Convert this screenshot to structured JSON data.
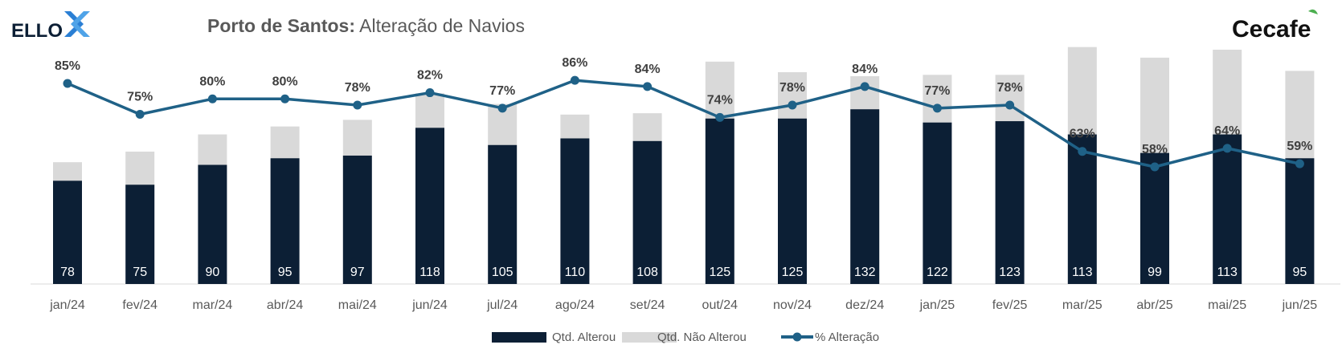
{
  "header": {
    "title_bold": "Porto de Santos:",
    "title_rest": " Alteração de Navios",
    "logo_left": "ELLO",
    "logo_right": "Cecafe"
  },
  "colors": {
    "altered": "#0c1f35",
    "not_altered": "#d9d9d9",
    "line": "#1f6187",
    "text_axis": "#595959",
    "pct_label": "#404040"
  },
  "chart_data": {
    "type": "bar",
    "stacked": true,
    "categories": [
      "jan/24",
      "fev/24",
      "mar/24",
      "abr/24",
      "mai/24",
      "jun/24",
      "jul/24",
      "ago/24",
      "set/24",
      "out/24",
      "nov/24",
      "dez/24",
      "jan/25",
      "fev/25",
      "mar/25",
      "abr/25",
      "mai/25",
      "jun/25"
    ],
    "series": [
      {
        "name": "Qtd. Alterou",
        "values": [
          78,
          75,
          90,
          95,
          97,
          118,
          105,
          110,
          108,
          125,
          125,
          132,
          122,
          123,
          113,
          99,
          113,
          95
        ]
      },
      {
        "name": "Qtd. Não Alterou",
        "values": [
          14,
          25,
          23,
          24,
          27,
          26,
          31,
          18,
          21,
          43,
          35,
          25,
          36,
          35,
          66,
          72,
          64,
          66
        ]
      }
    ],
    "line_series": {
      "name": "% Alteração",
      "values": [
        85,
        75,
        80,
        80,
        78,
        82,
        77,
        86,
        84,
        74,
        78,
        84,
        77,
        78,
        63,
        58,
        64,
        59
      ],
      "labels": [
        "85%",
        "75%",
        "80%",
        "80%",
        "78%",
        "82%",
        "77%",
        "86%",
        "84%",
        "74%",
        "78%",
        "84%",
        "77%",
        "78%",
        "63%",
        "58%",
        "64%",
        "59%"
      ]
    },
    "legend": {
      "position": "bottom"
    },
    "grid": false
  }
}
